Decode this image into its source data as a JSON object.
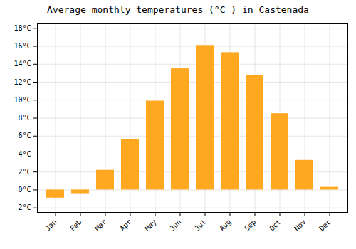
{
  "chart_data": {
    "type": "bar",
    "title": "Average monthly temperatures (°C ) in Castenada",
    "categories": [
      "Jan",
      "Feb",
      "Mar",
      "Apr",
      "May",
      "Jun",
      "Jul",
      "Aug",
      "Sep",
      "Oct",
      "Nov",
      "Dec"
    ],
    "values": [
      -0.9,
      -0.4,
      2.2,
      5.6,
      9.9,
      13.5,
      16.1,
      15.3,
      12.8,
      8.5,
      3.3,
      0.3
    ],
    "color": "#FFA820",
    "ylim": [
      -2.5,
      18.5
    ],
    "yticks": [
      {
        "value": -2,
        "label": "-2°C"
      },
      {
        "value": 0,
        "label": "0°C"
      },
      {
        "value": 2,
        "label": "2°C"
      },
      {
        "value": 4,
        "label": "4°C"
      },
      {
        "value": 6,
        "label": "6°C"
      },
      {
        "value": 8,
        "label": "8°C"
      },
      {
        "value": 10,
        "label": "10°C"
      },
      {
        "value": 12,
        "label": "12°C"
      },
      {
        "value": 14,
        "label": "14°C"
      },
      {
        "value": 16,
        "label": "16°C"
      },
      {
        "value": 18,
        "label": "18°C"
      }
    ],
    "grid": true
  }
}
